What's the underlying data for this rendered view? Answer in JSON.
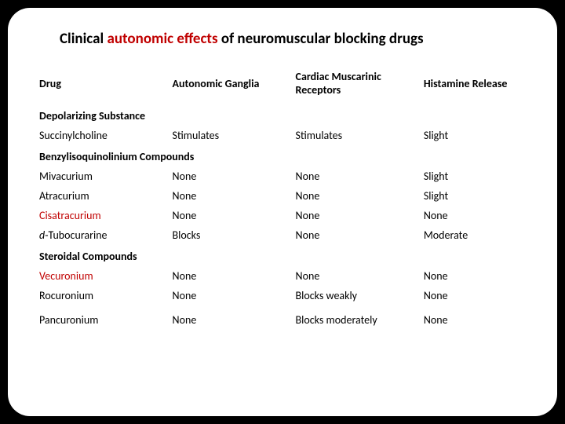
{
  "title_prefix": "Clinical ",
  "title_red": "autonomic effects",
  "title_suffix": " of neuromuscular blocking drugs",
  "colors": {
    "accent": "#c00000",
    "text": "#000000",
    "background": "#ffffff",
    "outer": "#000000"
  },
  "fonts": {
    "title_size_pt": 19,
    "body_size_pt": 14,
    "family": "Calibri"
  },
  "columns": [
    {
      "label": "Drug"
    },
    {
      "label": "Autonomic Ganglia"
    },
    {
      "label": "Cardiac Muscarinic Receptors"
    },
    {
      "label": "Histamine Release"
    }
  ],
  "sections": [
    {
      "heading": "Depolarizing Substance",
      "rows": [
        {
          "drug": "Succinylcholine",
          "ag": "Stimulates",
          "cm": "Stimulates",
          "hr": "Slight"
        }
      ]
    },
    {
      "heading": "Benzylisoquinolinium Compounds",
      "rows": [
        {
          "drug": "Mivacurium",
          "ag": "None",
          "cm": "None",
          "hr": "Slight"
        },
        {
          "drug": "Atracurium",
          "ag": "None",
          "cm": "None",
          "hr": "Slight"
        },
        {
          "drug": "Cisatracurium",
          "drug_red": true,
          "ag": "None",
          "cm": "None",
          "hr": "None"
        },
        {
          "drug_prefix": "d",
          "drug_italic_prefix": true,
          "drug": "-Tubocurarine",
          "ag": "Blocks",
          "cm": "None",
          "hr": "Moderate"
        }
      ]
    },
    {
      "heading": "Steroidal Compounds",
      "rows": [
        {
          "drug": "Vecuronium",
          "drug_red": true,
          "ag": "None",
          "cm": "None",
          "hr": "None"
        },
        {
          "drug": "Rocuronium",
          "ag": "None",
          "cm": "Blocks weakly",
          "hr": "None"
        }
      ]
    }
  ],
  "trailing_rows": [
    {
      "drug": "Pancuronium",
      "ag": "None",
      "cm": "Blocks moderately",
      "hr": "None"
    }
  ]
}
